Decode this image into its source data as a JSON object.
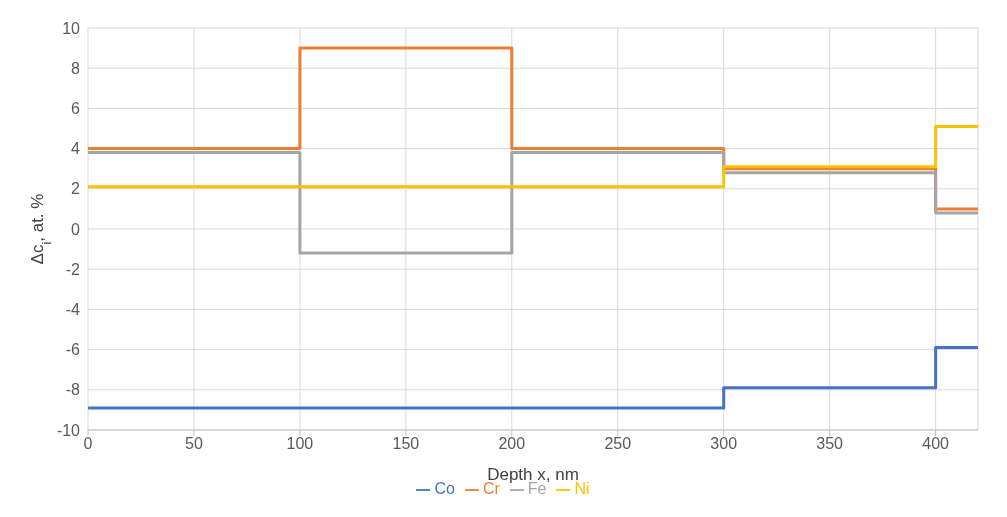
{
  "chart_data": {
    "type": "step",
    "xlabel": "Depth x, nm",
    "ylabel": "Δc$_{i}$, at. %",
    "x": [
      0,
      100,
      200,
      300,
      400,
      420
    ],
    "series": [
      {
        "name": "Co",
        "color": "#4472c4",
        "values": [
          -8.9,
          -8.9,
          -8.9,
          -7.9,
          -5.9,
          -5.9
        ]
      },
      {
        "name": "Cr",
        "color": "#ed7d31",
        "values": [
          4,
          9,
          4,
          3,
          1,
          1
        ]
      },
      {
        "name": "Fe",
        "color": "#a5a5a5",
        "values": [
          3.8,
          -1.2,
          3.8,
          2.8,
          0.8,
          0.8
        ]
      },
      {
        "name": "Ni",
        "color": "#ffc000",
        "values": [
          2.1,
          2.1,
          2.1,
          3.1,
          5.1,
          5.1
        ]
      }
    ],
    "xlim": [
      0,
      420
    ],
    "xticks": [
      0,
      50,
      100,
      150,
      200,
      250,
      300,
      350,
      400
    ],
    "ylim": [
      -10,
      10
    ],
    "yticks": [
      -10,
      -8,
      -6,
      -4,
      -2,
      0,
      2,
      4,
      6,
      8,
      10
    ],
    "grid": true,
    "legend": "bottom",
    "marker": "none",
    "line_style": "solid"
  }
}
